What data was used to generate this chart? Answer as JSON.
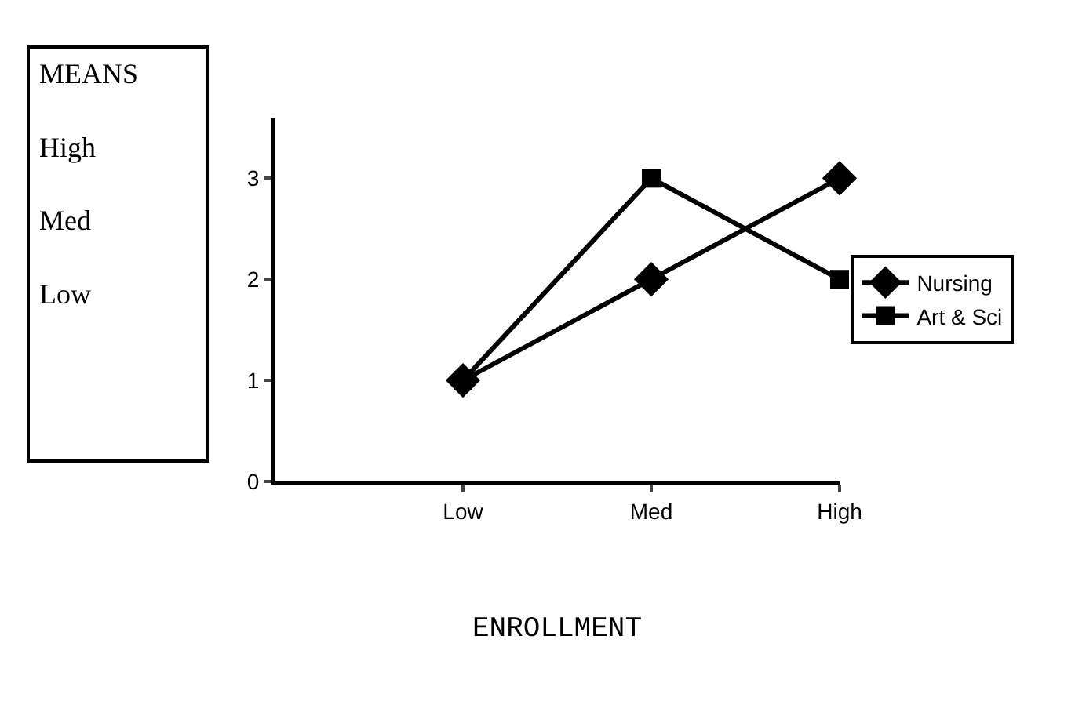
{
  "chart_data": {
    "type": "line",
    "xlabel": "ENROLLMENT",
    "categories": [
      null,
      "Low",
      "Med",
      "High"
    ],
    "series": [
      {
        "name": "Nursing",
        "color": "#000000",
        "marker": "diamond",
        "values": [
          null,
          1,
          2,
          3
        ]
      },
      {
        "name": "Art & Sci",
        "color": "#000000",
        "marker": "square",
        "values": [
          null,
          1,
          3,
          2
        ]
      }
    ],
    "ylim": [
      0,
      3.6
    ],
    "yticks": [
      0,
      1,
      2,
      3
    ],
    "legend": "right",
    "line_style": "solid",
    "annotations": [
      "MEANS",
      "High",
      "Med",
      "Low"
    ]
  }
}
